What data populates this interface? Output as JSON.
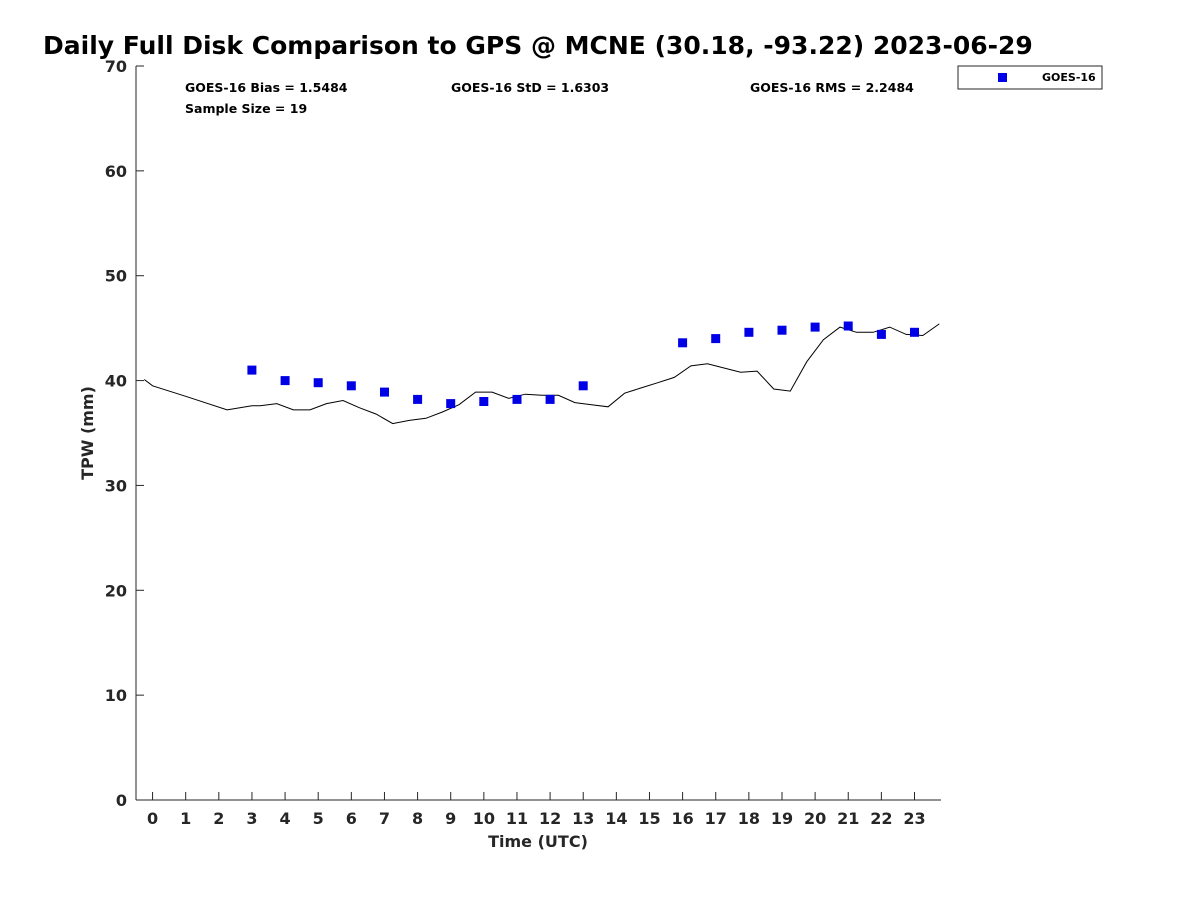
{
  "chart_data": {
    "type": "scatter",
    "title": "Daily Full Disk Comparison to GPS @ MCNE (30.18, -93.22) 2023-06-29",
    "xlabel": "Time (UTC)",
    "ylabel": "TPW (mm)",
    "xlim": [
      -0.5,
      23.8
    ],
    "ylim": [
      0,
      70
    ],
    "x_ticks": [
      0,
      1,
      2,
      3,
      4,
      5,
      6,
      7,
      8,
      9,
      10,
      11,
      12,
      13,
      14,
      15,
      16,
      17,
      18,
      19,
      20,
      21,
      22,
      23
    ],
    "y_ticks": [
      0,
      10,
      20,
      30,
      40,
      50,
      60,
      70
    ],
    "grid": false,
    "legend_position": "top-right-outside",
    "stats": {
      "bias": "GOES-16 Bias = 1.5484",
      "std": "GOES-16 StD = 1.6303",
      "rms": "GOES-16 RMS = 2.2484",
      "sample_size": "Sample Size = 19"
    },
    "series": [
      {
        "name": "GOES-16",
        "kind": "scatter",
        "marker": "square",
        "color": "#0000e6",
        "x": [
          3,
          4,
          5,
          6,
          7,
          8,
          9,
          10,
          11,
          12,
          13,
          16,
          17,
          18,
          19,
          20,
          21,
          22,
          23
        ],
        "y": [
          41.0,
          40.0,
          39.8,
          39.5,
          38.9,
          38.2,
          37.8,
          38.0,
          38.2,
          38.2,
          39.5,
          43.6,
          44.0,
          44.6,
          44.8,
          45.1,
          45.2,
          44.4,
          44.6
        ]
      },
      {
        "kind": "line",
        "color": "#000000",
        "x": [
          -0.25,
          0.0,
          1.0,
          2.25,
          3.0,
          3.25,
          3.75,
          4.25,
          4.75,
          5.25,
          5.75,
          6.25,
          6.75,
          7.25,
          7.75,
          8.25,
          8.75,
          9.25,
          9.75,
          10.25,
          10.75,
          11.25,
          11.75,
          12.25,
          12.75,
          13.25,
          13.75,
          14.25,
          14.75,
          15.25,
          15.75,
          16.25,
          16.75,
          17.25,
          17.75,
          18.25,
          18.75,
          19.25,
          19.75,
          20.25,
          20.75,
          21.25,
          21.75,
          22.25,
          22.75,
          23.25,
          23.75
        ],
        "y": [
          40.1,
          39.5,
          38.5,
          37.2,
          37.6,
          37.6,
          37.8,
          37.2,
          37.2,
          37.8,
          38.1,
          37.4,
          36.8,
          35.9,
          36.2,
          36.4,
          37.0,
          37.7,
          38.9,
          38.9,
          38.3,
          38.7,
          38.6,
          38.6,
          37.9,
          37.7,
          37.5,
          38.8,
          39.3,
          39.8,
          40.3,
          41.4,
          41.6,
          41.2,
          40.8,
          40.9,
          39.2,
          39.0,
          41.8,
          43.9,
          45.1,
          44.6,
          44.6,
          45.1,
          44.4,
          44.3,
          45.4
        ]
      }
    ]
  }
}
